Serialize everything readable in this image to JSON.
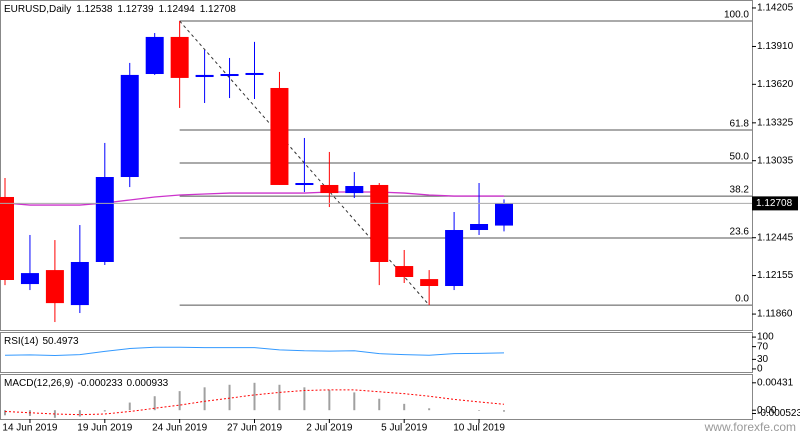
{
  "chart_data": [
    {
      "type": "candlestick",
      "title": "EURUSD,Daily",
      "categories": [
        null,
        "14 Jun 2019",
        null,
        null,
        "19 Jun 2019",
        null,
        null,
        "24 Jun 2019",
        null,
        null,
        "27 Jun 2019",
        null,
        null,
        "2 Jul 2019",
        null,
        null,
        "5 Jul 2019",
        null,
        null,
        "10 Jul 2019",
        null
      ],
      "open": [
        1.12757,
        1.1209,
        1.12197,
        1.11929,
        1.12259,
        1.1291,
        1.13699,
        1.13983,
        1.13676,
        1.13684,
        1.13699,
        1.13592,
        1.12849,
        1.12849,
        1.12787,
        1.12849,
        1.12228,
        1.12128,
        1.12075,
        1.12504,
        1.12538
      ],
      "high": [
        1.12902,
        1.12466,
        1.12427,
        1.12542,
        1.13171,
        1.13784,
        1.14013,
        1.14105,
        1.13883,
        1.13822,
        1.13945,
        1.13715,
        1.13209,
        1.13102,
        1.12948,
        1.12864,
        1.12351,
        1.12197,
        1.12642,
        1.12864,
        1.12739
      ],
      "low": [
        1.12082,
        1.12044,
        1.11799,
        1.11868,
        1.12236,
        1.12833,
        1.13692,
        1.13439,
        1.13477,
        1.13515,
        1.13508,
        1.12849,
        1.12795,
        1.1268,
        1.12749,
        1.12082,
        1.12098,
        1.11929,
        1.12044,
        1.12466,
        1.12494
      ],
      "close": [
        1.12121,
        1.12174,
        1.11944,
        1.12259,
        1.1291,
        1.13692,
        1.13983,
        1.13669,
        1.13692,
        1.13699,
        1.13707,
        1.12849,
        1.12864,
        1.12787,
        1.12841,
        1.12259,
        1.12144,
        1.12075,
        1.12504,
        1.1255,
        1.12708
      ],
      "up_color": "#0000ff",
      "down_color": "#ff0000",
      "ma": {
        "color": "#cc33cc",
        "values": [
          1.12711,
          1.12695,
          1.12695,
          1.12695,
          1.12711,
          1.12734,
          1.12757,
          1.12772,
          1.1278,
          1.12787,
          1.12787,
          1.12787,
          1.12787,
          1.12795,
          1.12795,
          1.12795,
          1.12787,
          1.12772,
          1.12764,
          1.12764,
          1.12764
        ]
      },
      "fibonacci": [
        {
          "value": 1.14105,
          "label": "100.0"
        },
        {
          "value": 1.1327,
          "label": "61.8"
        },
        {
          "value": 1.13017,
          "label": "50.0"
        },
        {
          "value": 1.12764,
          "label": "38.2"
        },
        {
          "value": 1.12443,
          "label": "23.6"
        },
        {
          "value": 1.11929,
          "label": "0.0"
        }
      ],
      "ylim": [
        1.11738,
        1.14266
      ],
      "yticks": [
        1.14205,
        {
          "value": 1.1391,
          "label": "1.13910"
        },
        {
          "value": 1.1362,
          "label": "1.13620"
        },
        1.13325,
        1.13035,
        1.12445,
        1.12155,
        {
          "value": 1.1186,
          "label": "1.11860"
        }
      ],
      "watermark": "www.forexfe.com"
    },
    {
      "type": "line",
      "name": "RSI(14)",
      "color": "#3399ff",
      "values": [
        43,
        44,
        42,
        45,
        55,
        64,
        68,
        68,
        67,
        67,
        67,
        60,
        57,
        56,
        57,
        48,
        45,
        43,
        48,
        49,
        50.4973
      ],
      "ylim": [
        -9.7,
        116
      ],
      "yticks": [
        100,
        70,
        30,
        0
      ]
    },
    {
      "type": "macd",
      "name": "MACD(12,26,9)",
      "hist_color": "#a0a0a0",
      "signal_color": "#ff0000",
      "values": [
        -0.0008,
        -0.0009,
        -0.0012,
        -0.001,
        -0.0002,
        0.0012,
        0.0022,
        0.003,
        0.0036,
        0.004,
        0.00431,
        0.004,
        0.0036,
        0.0032,
        0.0028,
        0.0018,
        0.001,
        0.0003,
        0,
        -0.0001,
        -0.000233
      ],
      "signal": [
        -0.0002,
        -0.0004,
        -0.0006,
        -0.0007,
        -0.0006,
        -0.0002,
        0.0003,
        0.0008,
        0.0014,
        0.0019,
        0.0024,
        0.0028,
        0.0031,
        0.0032,
        0.0032,
        0.0029,
        0.0026,
        0.0022,
        0.0017,
        0.0013,
        0.000933
      ],
      "ylim": [
        -0.001385,
        0.005695
      ],
      "yticks": [
        0.00431,
        {
          "value": 0,
          "label": "0.00"
        },
        -0.000523
      ]
    }
  ]
}
